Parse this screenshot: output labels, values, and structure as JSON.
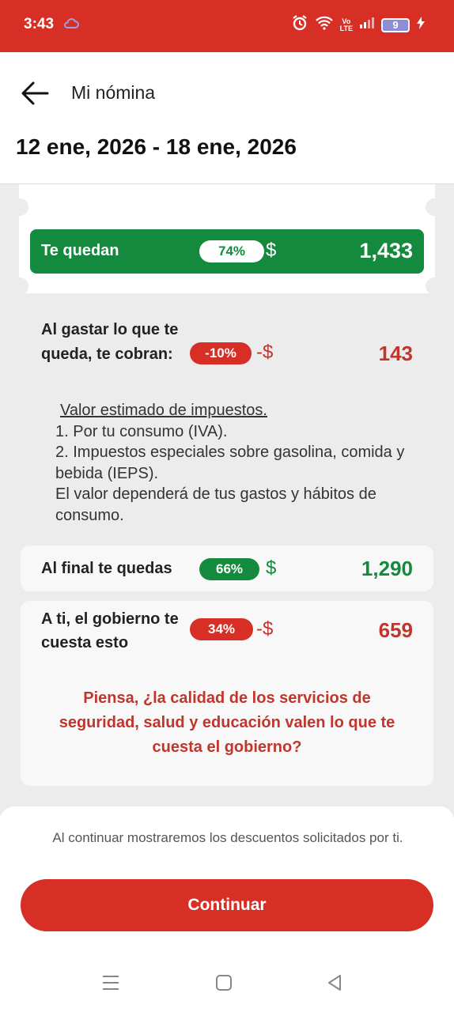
{
  "status_bar": {
    "time": "3:43",
    "volte_top": "Vo",
    "volte_bottom": "LTE",
    "battery": "9"
  },
  "header": {
    "title": "Mi nómina",
    "period": "12 ene, 2026 - 18 ene, 2026"
  },
  "te_quedan": {
    "label": "Te quedan",
    "percent": "74%",
    "currency": "$",
    "amount": "1,433"
  },
  "al_gastar": {
    "label": "Al gastar lo que te queda, te cobran:",
    "percent": "-10%",
    "currency": "-$",
    "amount": "143"
  },
  "tax_info": {
    "heading": "Valor estimado de impuestos.",
    "line1": "1. Por tu consumo (IVA).",
    "line2": "2. Impuestos especiales sobre gasolina, comida y bebida (IEPS).",
    "line3": "El valor dependerá de tus gastos y hábitos de consumo."
  },
  "al_final": {
    "label": "Al final te quedas",
    "percent": "66%",
    "currency": "$",
    "amount": "1,290"
  },
  "gobierno": {
    "label": "A ti, el gobierno te cuesta esto",
    "percent": "34%",
    "currency": "-$",
    "amount": "659",
    "quote": "Piensa, ¿la calidad de los servicios de seguridad, salud y educación valen lo que te cuesta el gobierno?"
  },
  "footer": {
    "note": "Al continuar mostraremos los descuentos solicitados por ti.",
    "continue_label": "Continuar"
  },
  "colors": {
    "brand_red": "#d72f26",
    "green": "#148a3e",
    "red_text": "#c0352c"
  }
}
